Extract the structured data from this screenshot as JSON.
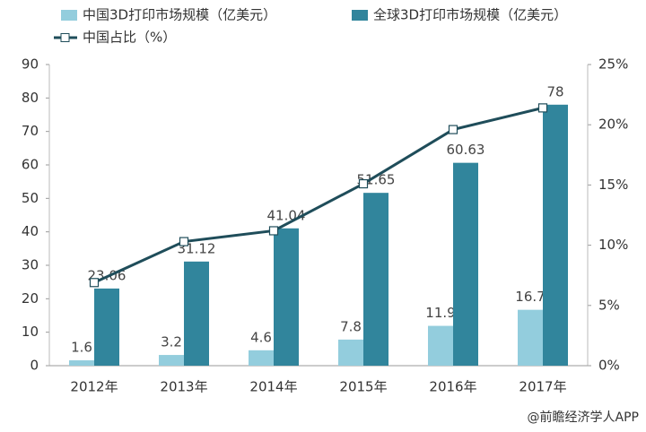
{
  "chart_data": {
    "type": "bar-line",
    "categories": [
      "2012年",
      "2013年",
      "2014年",
      "2015年",
      "2016年",
      "2017年"
    ],
    "series": [
      {
        "name": "中国3D打印市场规模（亿美元）",
        "color": "#93cddd",
        "values": [
          1.6,
          3.2,
          4.6,
          7.8,
          11.9,
          16.7
        ]
      },
      {
        "name": "全球3D打印市场规模（亿美元）",
        "color": "#31859c",
        "values": [
          23.06,
          31.12,
          41.04,
          51.65,
          60.63,
          78
        ]
      },
      {
        "name": "中国占比（%）",
        "color": "#1f4d5a",
        "axis": "y2",
        "type": "line",
        "values": [
          6.9,
          10.3,
          11.2,
          15.1,
          19.6,
          21.4
        ]
      }
    ],
    "ylim": [
      0,
      90
    ],
    "yticks": [
      0,
      10,
      20,
      30,
      40,
      50,
      60,
      70,
      80,
      90
    ],
    "y2lim": [
      0,
      25
    ],
    "y2ticks": [
      {
        "value": 0,
        "label": "0%"
      },
      {
        "value": 5,
        "label": "5%"
      },
      {
        "value": 10,
        "label": "10%"
      },
      {
        "value": 15,
        "label": "15%"
      },
      {
        "value": 20,
        "label": "20%"
      },
      {
        "value": 25,
        "label": "25%"
      }
    ],
    "grid": false
  },
  "footer": "@前瞻经济学人APP"
}
